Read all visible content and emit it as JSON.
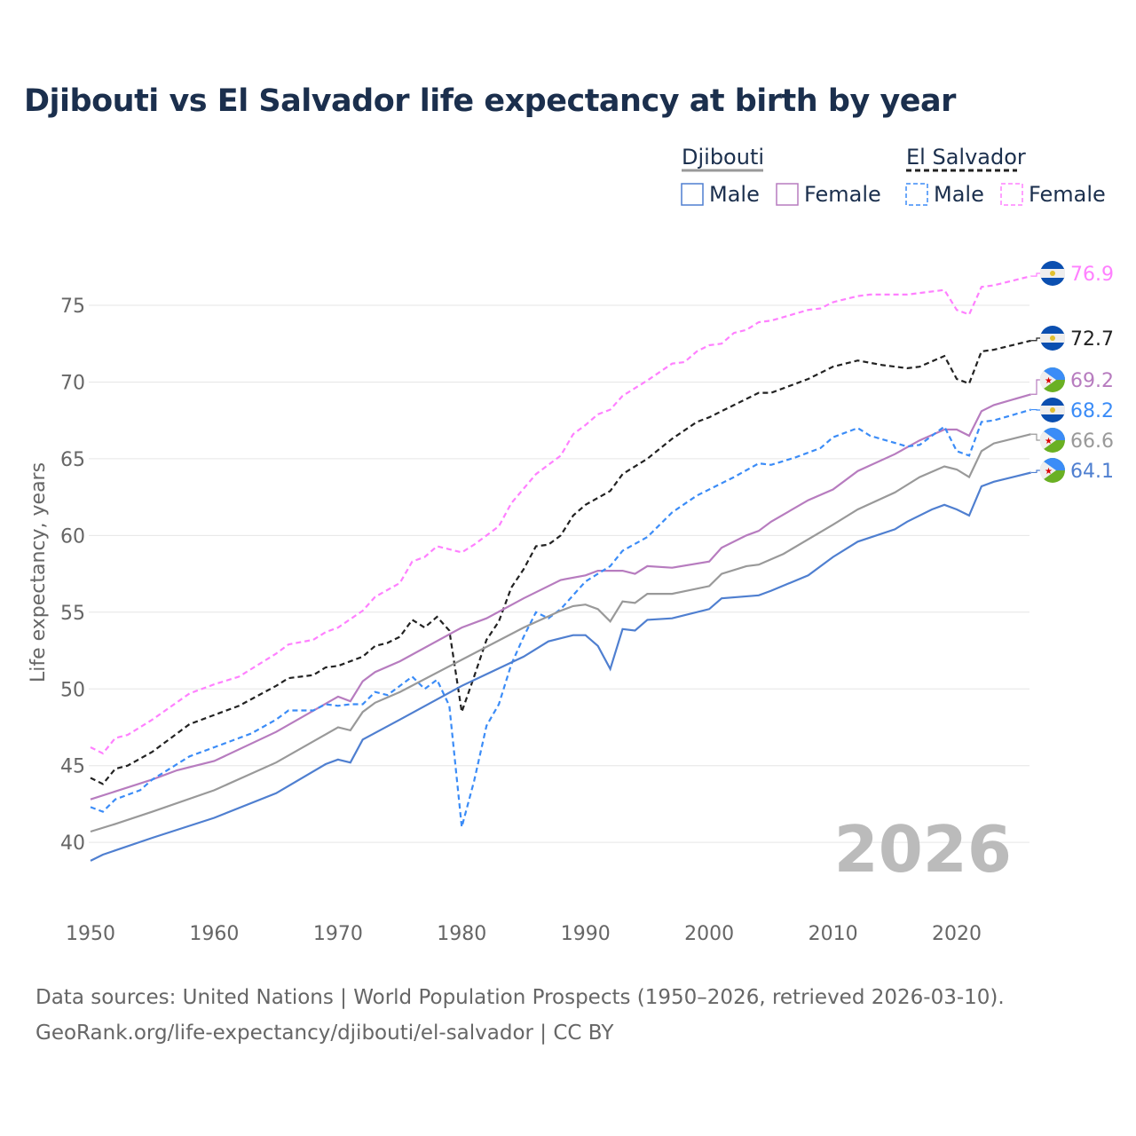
{
  "chart_data": {
    "type": "line",
    "title": "Djibouti vs El Salvador life expectancy at birth by year",
    "xlabel": "",
    "ylabel": "Life expectancy, years",
    "xlim": [
      1950,
      2026
    ],
    "ylim": [
      36,
      78
    ],
    "xticks": [
      1950,
      1960,
      1970,
      1980,
      1990,
      2000,
      2010,
      2020
    ],
    "yticks": [
      40,
      45,
      50,
      55,
      60,
      65,
      70,
      75
    ],
    "grid": true,
    "current_year_label": "2026",
    "legend": {
      "placement": "top-right",
      "groups": [
        {
          "name": "Djibouti",
          "items": [
            "Male",
            "Female"
          ]
        },
        {
          "name": "El Salvador",
          "items": [
            "Male",
            "Female"
          ]
        }
      ]
    },
    "series": [
      {
        "name": "El Salvador Female",
        "color": "#ff80ff",
        "dashed": true,
        "end_label": "76.9",
        "x": [
          1950,
          1951,
          1952,
          1953,
          1955,
          1958,
          1960,
          1962,
          1965,
          1966,
          1968,
          1969,
          1970,
          1972,
          1973,
          1975,
          1976,
          1977,
          1978,
          1980,
          1981,
          1983,
          1984,
          1986,
          1988,
          1989,
          1990,
          1991,
          1992,
          1993,
          1995,
          1997,
          1998,
          1999,
          2000,
          2001,
          2002,
          2003,
          2004,
          2005,
          2008,
          2009,
          2010,
          2012,
          2013,
          2016,
          2019,
          2020,
          2021,
          2022,
          2023,
          2026
        ],
        "y": [
          46.2,
          45.8,
          46.8,
          47.0,
          48.0,
          49.7,
          50.3,
          50.8,
          52.3,
          52.9,
          53.2,
          53.7,
          54.0,
          55.1,
          56.0,
          56.9,
          58.3,
          58.6,
          59.3,
          58.9,
          59.4,
          60.6,
          62.1,
          64.0,
          65.2,
          66.6,
          67.2,
          67.9,
          68.2,
          69.1,
          70.1,
          71.2,
          71.3,
          72.0,
          72.4,
          72.5,
          73.2,
          73.4,
          73.9,
          74.0,
          74.7,
          74.8,
          75.2,
          75.6,
          75.7,
          75.7,
          76.0,
          74.7,
          74.4,
          76.2,
          76.3,
          76.9
        ]
      },
      {
        "name": "El Salvador",
        "color": "#222222",
        "dashed": true,
        "end_label": "72.7",
        "x": [
          1950,
          1951,
          1952,
          1953,
          1955,
          1958,
          1960,
          1962,
          1965,
          1966,
          1968,
          1969,
          1970,
          1972,
          1973,
          1974,
          1975,
          1976,
          1977,
          1978,
          1979,
          1980,
          1981,
          1982,
          1983,
          1984,
          1985,
          1986,
          1987,
          1988,
          1989,
          1990,
          1992,
          1993,
          1995,
          1997,
          1999,
          2000,
          2002,
          2004,
          2005,
          2008,
          2010,
          2012,
          2014,
          2016,
          2017,
          2019,
          2020,
          2021,
          2022,
          2023,
          2026
        ],
        "y": [
          44.2,
          43.8,
          44.8,
          45.0,
          45.9,
          47.7,
          48.3,
          48.9,
          50.2,
          50.7,
          50.9,
          51.4,
          51.5,
          52.1,
          52.8,
          53.0,
          53.4,
          54.5,
          54.0,
          54.7,
          53.8,
          48.5,
          50.8,
          53.2,
          54.4,
          56.6,
          57.8,
          59.3,
          59.4,
          60.0,
          61.3,
          62.0,
          62.9,
          64.0,
          65.0,
          66.3,
          67.4,
          67.7,
          68.5,
          69.3,
          69.3,
          70.2,
          71.0,
          71.4,
          71.1,
          70.9,
          71.0,
          71.7,
          70.2,
          69.9,
          72.0,
          72.1,
          72.7
        ]
      },
      {
        "name": "Djibouti Female",
        "color": "#b77cbf",
        "dashed": false,
        "end_label": "69.2",
        "x": [
          1950,
          1955,
          1957,
          1960,
          1965,
          1970,
          1971,
          1972,
          1973,
          1975,
          1980,
          1982,
          1985,
          1988,
          1990,
          1991,
          1993,
          1994,
          1995,
          1997,
          2000,
          2001,
          2003,
          2004,
          2005,
          2008,
          2010,
          2012,
          2015,
          2017,
          2019,
          2020,
          2021,
          2022,
          2023,
          2026
        ],
        "y": [
          42.8,
          44.1,
          44.7,
          45.3,
          47.2,
          49.5,
          49.2,
          50.5,
          51.1,
          51.8,
          54.0,
          54.6,
          55.9,
          57.1,
          57.4,
          57.7,
          57.7,
          57.5,
          58.0,
          57.9,
          58.3,
          59.2,
          60.0,
          60.3,
          60.9,
          62.3,
          63.0,
          64.2,
          65.3,
          66.2,
          66.9,
          66.9,
          66.5,
          68.1,
          68.5,
          69.2
        ]
      },
      {
        "name": "El Salvador Male",
        "color": "#3b8cf7",
        "dashed": true,
        "end_label": "68.2",
        "x": [
          1950,
          1951,
          1952,
          1954,
          1955,
          1958,
          1960,
          1963,
          1965,
          1966,
          1968,
          1969,
          1970,
          1971,
          1972,
          1973,
          1974,
          1976,
          1977,
          1978,
          1979,
          1980,
          1981,
          1982,
          1983,
          1984,
          1985,
          1986,
          1987,
          1988,
          1990,
          1992,
          1993,
          1995,
          1997,
          1999,
          2000,
          2002,
          2004,
          2005,
          2007,
          2009,
          2010,
          2012,
          2013,
          2016,
          2017,
          2019,
          2020,
          2021,
          2022,
          2023,
          2026
        ],
        "y": [
          42.3,
          42.0,
          42.8,
          43.4,
          44.1,
          45.6,
          46.2,
          47.1,
          48.0,
          48.6,
          48.6,
          49.0,
          48.9,
          49.0,
          49.0,
          49.8,
          49.6,
          50.8,
          50.0,
          50.6,
          48.9,
          41.0,
          44.0,
          47.6,
          49.0,
          51.6,
          53.4,
          55.0,
          54.6,
          55.2,
          57.0,
          58.0,
          59.0,
          59.9,
          61.5,
          62.6,
          63.0,
          63.8,
          64.7,
          64.6,
          65.1,
          65.7,
          66.4,
          67.0,
          66.5,
          65.8,
          65.9,
          67.1,
          65.5,
          65.2,
          67.4,
          67.5,
          68.2
        ]
      },
      {
        "name": "Djibouti",
        "color": "#999999",
        "dashed": false,
        "end_label": "66.6",
        "x": [
          1950,
          1952,
          1955,
          1960,
          1965,
          1970,
          1971,
          1972,
          1973,
          1975,
          1980,
          1985,
          1988,
          1989,
          1990,
          1991,
          1992,
          1993,
          1994,
          1995,
          1997,
          2000,
          2001,
          2003,
          2004,
          2006,
          2010,
          2012,
          2015,
          2017,
          2019,
          2020,
          2021,
          2022,
          2023,
          2026
        ],
        "y": [
          40.7,
          41.2,
          42.0,
          43.4,
          45.2,
          47.5,
          47.3,
          48.5,
          49.1,
          49.8,
          51.9,
          54.0,
          55.1,
          55.4,
          55.5,
          55.2,
          54.4,
          55.7,
          55.6,
          56.2,
          56.2,
          56.7,
          57.5,
          58.0,
          58.1,
          58.8,
          60.7,
          61.7,
          62.8,
          63.8,
          64.5,
          64.3,
          63.8,
          65.5,
          66.0,
          66.6
        ]
      },
      {
        "name": "Djibouti Male",
        "color": "#4f7fd0",
        "dashed": false,
        "end_label": "64.1",
        "x": [
          1950,
          1951,
          1955,
          1960,
          1965,
          1969,
          1970,
          1971,
          1972,
          1975,
          1980,
          1985,
          1987,
          1989,
          1990,
          1991,
          1992,
          1993,
          1994,
          1995,
          1997,
          2000,
          2001,
          2004,
          2005,
          2008,
          2010,
          2012,
          2015,
          2016,
          2018,
          2019,
          2020,
          2021,
          2022,
          2023,
          2026
        ],
        "y": [
          38.8,
          39.2,
          40.3,
          41.6,
          43.2,
          45.1,
          45.4,
          45.2,
          46.7,
          48.0,
          50.2,
          52.1,
          53.1,
          53.5,
          53.5,
          52.8,
          51.3,
          53.9,
          53.8,
          54.5,
          54.6,
          55.2,
          55.9,
          56.1,
          56.4,
          57.4,
          58.6,
          59.6,
          60.4,
          60.9,
          61.7,
          62.0,
          61.7,
          61.3,
          63.2,
          63.5,
          64.1
        ]
      }
    ]
  },
  "footer": {
    "line1": "Data sources: United Nations | World Population Prospects (1950–2026, retrieved 2026-03-10).",
    "line2": "GeoRank.org/life-expectancy/djibouti/el-salvador | CC BY"
  }
}
